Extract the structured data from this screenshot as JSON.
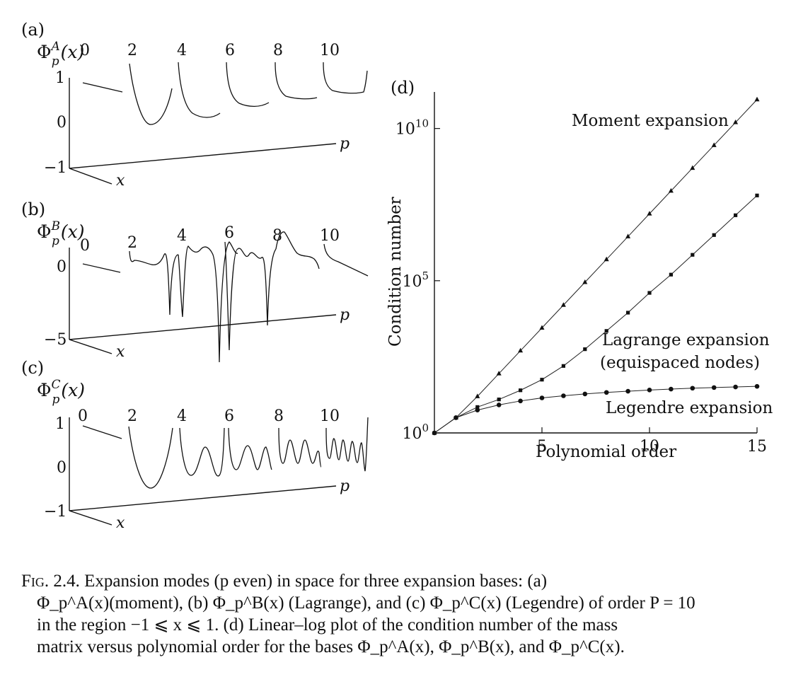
{
  "panels": [
    {
      "letter": "(a)",
      "function_label": "Φ",
      "function_sup": "A",
      "function_sub": "p",
      "function_arg": "(x)",
      "z_ticks": [
        "1",
        "0",
        "−1"
      ],
      "mode_labels": [
        "0",
        "2",
        "4",
        "6",
        "8",
        "10"
      ],
      "x_axis": "x",
      "p_axis": "p"
    },
    {
      "letter": "(b)",
      "function_label": "Φ",
      "function_sup": "B",
      "function_sub": "p",
      "function_arg": "(x)",
      "z_ticks": [
        "0",
        "−5"
      ],
      "mode_labels": [
        "0",
        "2",
        "4",
        "6",
        "8",
        "10"
      ],
      "x_axis": "x",
      "p_axis": "p"
    },
    {
      "letter": "(c)",
      "function_label": "Φ",
      "function_sup": "C",
      "function_sub": "p",
      "function_arg": "(x)",
      "z_ticks": [
        "1",
        "0",
        "−1"
      ],
      "mode_labels": [
        "0",
        "2",
        "4",
        "6",
        "8",
        "10"
      ],
      "x_axis": "x",
      "p_axis": "p"
    }
  ],
  "chart_data": {
    "type": "line",
    "panel_letter": "(d)",
    "xlabel": "Polynomial order",
    "ylabel": "Condition number",
    "xlim": [
      0,
      15
    ],
    "ylog": true,
    "ylim_exponent": [
      0,
      11.2
    ],
    "x_ticks": [
      "5",
      "10",
      "15"
    ],
    "y_ticks": [
      {
        "base": "10",
        "exp": "0",
        "value_exp": 0
      },
      {
        "base": "10",
        "exp": "5",
        "value_exp": 5
      },
      {
        "base": "10",
        "exp": "10",
        "value_exp": 10
      }
    ],
    "grid": false,
    "series": [
      {
        "name": "Moment expansion",
        "marker": "triangle",
        "x": [
          0,
          1,
          2,
          3,
          4,
          5,
          6,
          7,
          8,
          9,
          10,
          11,
          12,
          13,
          14,
          15
        ],
        "log10_y": [
          0,
          0.5,
          1.2,
          1.95,
          2.7,
          3.45,
          4.2,
          4.95,
          5.7,
          6.45,
          7.2,
          7.95,
          8.7,
          9.45,
          10.2,
          10.95
        ]
      },
      {
        "name": "Lagrange expansion",
        "name_line2": "(equispaced nodes)",
        "marker": "square",
        "x": [
          0,
          1,
          2,
          3,
          4,
          5,
          6,
          7,
          8,
          9,
          10,
          11,
          12,
          13,
          14,
          15
        ],
        "log10_y": [
          0,
          0.5,
          0.85,
          1.1,
          1.4,
          1.75,
          2.2,
          2.75,
          3.35,
          3.95,
          4.6,
          5.2,
          5.85,
          6.5,
          7.15,
          7.8
        ]
      },
      {
        "name": "Legendre expansion",
        "marker": "circle",
        "x": [
          0,
          1,
          2,
          3,
          4,
          5,
          6,
          7,
          8,
          9,
          10,
          11,
          12,
          13,
          14,
          15
        ],
        "log10_y": [
          0,
          0.5,
          0.75,
          0.92,
          1.05,
          1.15,
          1.22,
          1.28,
          1.33,
          1.37,
          1.41,
          1.44,
          1.47,
          1.49,
          1.51,
          1.53
        ]
      }
    ]
  },
  "caption": {
    "lead": "Fig. 2.4.",
    "line1": "Expansion modes (p even) in space for three expansion bases: (a)",
    "line2": "Φ_p^A(x)(moment), (b) Φ_p^B(x) (Lagrange), and (c) Φ_p^C(x) (Legendre) of order P = 10",
    "line3": "in the region −1 ⩽ x ⩽ 1. (d) Linear–log plot of the condition number of the mass",
    "line4": "matrix versus polynomial order for the bases Φ_p^A(x), Φ_p^B(x), and Φ_p^C(x)."
  }
}
